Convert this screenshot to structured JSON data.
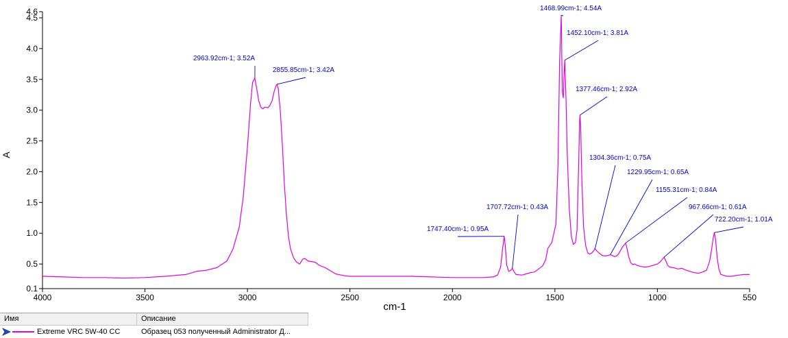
{
  "chart_data": {
    "type": "line",
    "title": "",
    "xlabel": "cm-1",
    "ylabel": "A",
    "xlim": [
      4000,
      550
    ],
    "ylim": [
      0.1,
      4.6
    ],
    "x_reversed": true,
    "grid": false,
    "x_ticks": [
      4000,
      3500,
      3000,
      2500,
      2000,
      1500,
      1000,
      550
    ],
    "y_ticks": [
      0.1,
      0.5,
      1.0,
      1.5,
      2.0,
      2.5,
      3.0,
      3.5,
      4.0,
      4.5,
      4.6
    ],
    "x_tick_labels": [
      "4000",
      "3500",
      "3000",
      "2500",
      "2000",
      "1500",
      "1000",
      "550"
    ],
    "y_tick_labels": [
      "0.1",
      "0.5",
      "1.0",
      "1.5",
      "2.0",
      "2.5",
      "3.0",
      "3.5",
      "4.0",
      "4.5",
      "4.6"
    ],
    "series": [
      {
        "name": "Extreme VRC 5W-40 CC",
        "color": "#e000e0",
        "points": [
          [
            4000,
            0.3
          ],
          [
            3900,
            0.29
          ],
          [
            3800,
            0.28
          ],
          [
            3700,
            0.28
          ],
          [
            3600,
            0.27
          ],
          [
            3500,
            0.28
          ],
          [
            3400,
            0.3
          ],
          [
            3300,
            0.33
          ],
          [
            3250,
            0.38
          ],
          [
            3200,
            0.4
          ],
          [
            3150,
            0.44
          ],
          [
            3100,
            0.55
          ],
          [
            3070,
            0.75
          ],
          [
            3040,
            1.1
          ],
          [
            3020,
            1.6
          ],
          [
            3000,
            2.4
          ],
          [
            2985,
            3.1
          ],
          [
            2975,
            3.45
          ],
          [
            2963.92,
            3.52
          ],
          [
            2955,
            3.35
          ],
          [
            2945,
            3.15
          ],
          [
            2935,
            3.05
          ],
          [
            2925,
            3.02
          ],
          [
            2915,
            3.05
          ],
          [
            2900,
            3.04
          ],
          [
            2890,
            3.08
          ],
          [
            2880,
            3.15
          ],
          [
            2870,
            3.3
          ],
          [
            2860,
            3.4
          ],
          [
            2855.85,
            3.42
          ],
          [
            2850,
            3.35
          ],
          [
            2840,
            3.0
          ],
          [
            2830,
            2.45
          ],
          [
            2820,
            1.8
          ],
          [
            2810,
            1.3
          ],
          [
            2800,
            0.95
          ],
          [
            2790,
            0.75
          ],
          [
            2775,
            0.6
          ],
          [
            2760,
            0.53
          ],
          [
            2745,
            0.5
          ],
          [
            2730,
            0.58
          ],
          [
            2720,
            0.59
          ],
          [
            2705,
            0.55
          ],
          [
            2690,
            0.54
          ],
          [
            2670,
            0.53
          ],
          [
            2650,
            0.48
          ],
          [
            2620,
            0.44
          ],
          [
            2600,
            0.4
          ],
          [
            2570,
            0.34
          ],
          [
            2530,
            0.31
          ],
          [
            2500,
            0.3
          ],
          [
            2400,
            0.3
          ],
          [
            2300,
            0.3
          ],
          [
            2200,
            0.3
          ],
          [
            2100,
            0.29
          ],
          [
            2000,
            0.28
          ],
          [
            1950,
            0.28
          ],
          [
            1900,
            0.28
          ],
          [
            1850,
            0.28
          ],
          [
            1800,
            0.29
          ],
          [
            1780,
            0.32
          ],
          [
            1765,
            0.45
          ],
          [
            1755,
            0.75
          ],
          [
            1747.4,
            0.95
          ],
          [
            1742,
            0.8
          ],
          [
            1735,
            0.48
          ],
          [
            1725,
            0.38
          ],
          [
            1715,
            0.4
          ],
          [
            1707.72,
            0.43
          ],
          [
            1700,
            0.38
          ],
          [
            1690,
            0.33
          ],
          [
            1660,
            0.32
          ],
          [
            1640,
            0.34
          ],
          [
            1620,
            0.36
          ],
          [
            1600,
            0.37
          ],
          [
            1580,
            0.42
          ],
          [
            1560,
            0.47
          ],
          [
            1545,
            0.57
          ],
          [
            1535,
            0.75
          ],
          [
            1525,
            0.8
          ],
          [
            1515,
            0.85
          ],
          [
            1505,
            1.0
          ],
          [
            1495,
            1.15
          ],
          [
            1485,
            2.1
          ],
          [
            1477,
            3.8
          ],
          [
            1468.99,
            4.54
          ],
          [
            1464,
            3.3
          ],
          [
            1459,
            3.2
          ],
          [
            1455,
            3.6
          ],
          [
            1452.1,
            3.81
          ],
          [
            1446,
            3.2
          ],
          [
            1440,
            2.3
          ],
          [
            1430,
            1.4
          ],
          [
            1420,
            0.95
          ],
          [
            1410,
            0.82
          ],
          [
            1400,
            0.85
          ],
          [
            1392,
            1.05
          ],
          [
            1385,
            2.0
          ],
          [
            1379,
            2.85
          ],
          [
            1377.46,
            2.92
          ],
          [
            1374,
            2.7
          ],
          [
            1368,
            1.8
          ],
          [
            1360,
            1.1
          ],
          [
            1350,
            0.8
          ],
          [
            1340,
            0.68
          ],
          [
            1330,
            0.66
          ],
          [
            1320,
            0.68
          ],
          [
            1310,
            0.72
          ],
          [
            1304.36,
            0.75
          ],
          [
            1298,
            0.72
          ],
          [
            1285,
            0.68
          ],
          [
            1270,
            0.64
          ],
          [
            1255,
            0.63
          ],
          [
            1240,
            0.64
          ],
          [
            1229.95,
            0.65
          ],
          [
            1220,
            0.64
          ],
          [
            1210,
            0.62
          ],
          [
            1200,
            0.63
          ],
          [
            1190,
            0.66
          ],
          [
            1180,
            0.72
          ],
          [
            1170,
            0.78
          ],
          [
            1160,
            0.82
          ],
          [
            1155.31,
            0.84
          ],
          [
            1150,
            0.78
          ],
          [
            1140,
            0.62
          ],
          [
            1130,
            0.52
          ],
          [
            1120,
            0.49
          ],
          [
            1110,
            0.5
          ],
          [
            1100,
            0.48
          ],
          [
            1080,
            0.46
          ],
          [
            1060,
            0.45
          ],
          [
            1040,
            0.46
          ],
          [
            1020,
            0.48
          ],
          [
            1000,
            0.5
          ],
          [
            985,
            0.54
          ],
          [
            975,
            0.58
          ],
          [
            967.66,
            0.61
          ],
          [
            960,
            0.56
          ],
          [
            950,
            0.48
          ],
          [
            940,
            0.45
          ],
          [
            920,
            0.44
          ],
          [
            900,
            0.42
          ],
          [
            880,
            0.43
          ],
          [
            860,
            0.4
          ],
          [
            840,
            0.38
          ],
          [
            820,
            0.36
          ],
          [
            800,
            0.35
          ],
          [
            780,
            0.37
          ],
          [
            760,
            0.4
          ],
          [
            745,
            0.55
          ],
          [
            735,
            0.75
          ],
          [
            728,
            0.92
          ],
          [
            722.2,
            1.01
          ],
          [
            716,
            0.9
          ],
          [
            708,
            0.6
          ],
          [
            700,
            0.42
          ],
          [
            690,
            0.33
          ],
          [
            680,
            0.32
          ],
          [
            660,
            0.3
          ],
          [
            640,
            0.3
          ],
          [
            620,
            0.31
          ],
          [
            600,
            0.32
          ],
          [
            580,
            0.33
          ],
          [
            560,
            0.33
          ],
          [
            550,
            0.33
          ]
        ]
      }
    ],
    "annotations": [
      {
        "text": "2963.92cm-1; 3.52A",
        "x": 2963.92,
        "y": 3.52
      },
      {
        "text": "2855.85cm-1; 3.42A",
        "x": 2855.85,
        "y": 3.42
      },
      {
        "text": "1468.99cm-1; 4.54A",
        "x": 1468.99,
        "y": 4.54
      },
      {
        "text": "1452.10cm-1; 3.81A",
        "x": 1452.1,
        "y": 3.81
      },
      {
        "text": "1377.46cm-1; 2.92A",
        "x": 1377.46,
        "y": 2.92
      },
      {
        "text": "1304.36cm-1; 0.75A",
        "x": 1304.36,
        "y": 0.75
      },
      {
        "text": "1229.95cm-1; 0.65A",
        "x": 1229.95,
        "y": 0.65
      },
      {
        "text": "1155.31cm-1; 0.84A",
        "x": 1155.31,
        "y": 0.84
      },
      {
        "text": "967.66cm-1; 0.61A",
        "x": 967.66,
        "y": 0.61
      },
      {
        "text": "722.20cm-1; 1.01A",
        "x": 722.2,
        "y": 1.01
      },
      {
        "text": "1747.40cm-1; 0.95A",
        "x": 1747.4,
        "y": 0.95
      },
      {
        "text": "1707.72cm-1; 0.43A",
        "x": 1707.72,
        "y": 0.43
      }
    ]
  },
  "legend": {
    "header": {
      "name": "Имя",
      "description": "Описание"
    },
    "rows": [
      {
        "name": "Extreme VRC 5W-40 CC",
        "description": "Образец 053 полученный Administrator Д...",
        "color": "#e000e0"
      }
    ]
  },
  "colors": {
    "axis": "#000000",
    "annotation": "#0000c8",
    "series": "#e000e0"
  }
}
